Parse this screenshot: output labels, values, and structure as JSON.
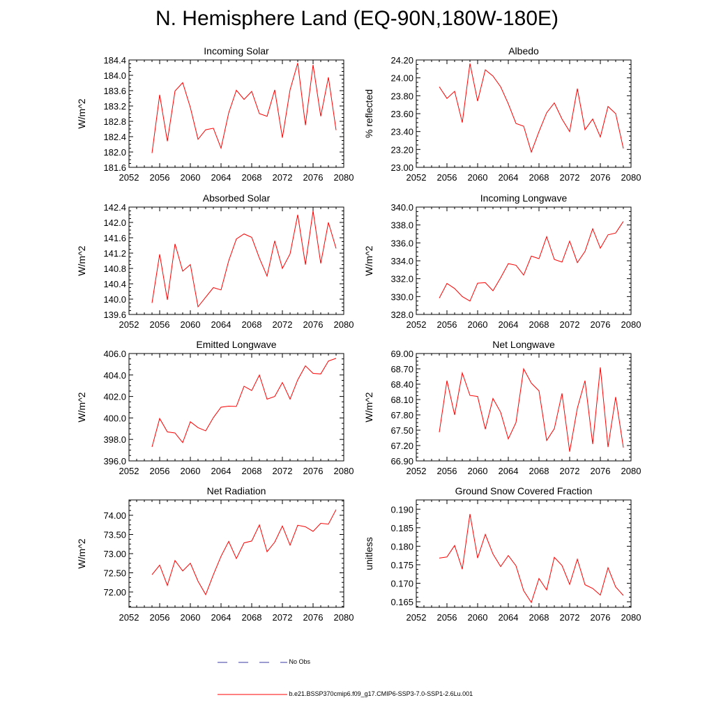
{
  "title": "N. Hemisphere Land (EQ-90N,180W-180E)",
  "colors": {
    "series": "#ff0000",
    "obs": "#3a3aa0",
    "axis": "#000000"
  },
  "legend": [
    {
      "label": "No Obs",
      "color": "#3a3aa0",
      "style": "dashed"
    },
    {
      "label": "b.e21.BSSP370cmip6.f09_g17.CMIP6-SSP3-7.0-SSP1-2.6Lu.001",
      "color": "#ff0000",
      "style": "solid"
    }
  ],
  "chart_data": [
    {
      "type": "line",
      "title": "Incoming Solar",
      "xlabel": "",
      "ylabel": "W/m^2",
      "xlim": [
        2052,
        2080
      ],
      "ylim": [
        181.6,
        184.4
      ],
      "xticks": [
        "2052",
        "2056",
        "2060",
        "2064",
        "2068",
        "2072",
        "2076",
        "2080"
      ],
      "yticks": [
        "181.6",
        "182.0",
        "182.4",
        "182.8",
        "183.2",
        "183.6",
        "184.0",
        "184.4"
      ],
      "x": [
        2055,
        2056,
        2057,
        2058,
        2059,
        2060,
        2061,
        2062,
        2063,
        2064,
        2065,
        2066,
        2067,
        2068,
        2069,
        2070,
        2071,
        2072,
        2073,
        2074,
        2075,
        2076,
        2077,
        2078,
        2079
      ],
      "series": [
        {
          "values": [
            181.97,
            183.49,
            182.28,
            183.59,
            183.81,
            183.16,
            182.33,
            182.58,
            182.62,
            182.1,
            183.02,
            183.61,
            183.37,
            183.58,
            183.0,
            182.93,
            183.62,
            182.37,
            183.62,
            184.32,
            182.7,
            184.27,
            182.93,
            183.95,
            182.57
          ]
        }
      ]
    },
    {
      "type": "line",
      "title": "Albedo",
      "xlabel": "",
      "ylabel": "% reflected",
      "xlim": [
        2052,
        2080
      ],
      "ylim": [
        23.0,
        24.2
      ],
      "xticks": [
        "2052",
        "2056",
        "2060",
        "2064",
        "2068",
        "2072",
        "2076",
        "2080"
      ],
      "yticks": [
        "23.00",
        "23.20",
        "23.40",
        "23.60",
        "23.80",
        "24.00",
        "24.20"
      ],
      "x": [
        2055,
        2056,
        2057,
        2058,
        2059,
        2060,
        2061,
        2062,
        2063,
        2064,
        2065,
        2066,
        2067,
        2068,
        2069,
        2070,
        2071,
        2072,
        2073,
        2074,
        2075,
        2076,
        2077,
        2078,
        2079
      ],
      "series": [
        {
          "values": [
            23.9,
            23.77,
            23.85,
            23.5,
            24.16,
            23.74,
            24.09,
            24.02,
            23.9,
            23.71,
            23.49,
            23.46,
            23.17,
            23.4,
            23.61,
            23.72,
            23.54,
            23.4,
            23.88,
            23.42,
            23.54,
            23.34,
            23.68,
            23.6,
            23.21
          ]
        }
      ]
    },
    {
      "type": "line",
      "title": "Absorbed Solar",
      "xlabel": "",
      "ylabel": "W/m^2",
      "xlim": [
        2052,
        2080
      ],
      "ylim": [
        139.6,
        142.4
      ],
      "xticks": [
        "2052",
        "2056",
        "2060",
        "2064",
        "2068",
        "2072",
        "2076",
        "2080"
      ],
      "yticks": [
        "139.6",
        "140.0",
        "140.4",
        "140.8",
        "141.2",
        "141.6",
        "142.0",
        "142.4"
      ],
      "x": [
        2055,
        2056,
        2057,
        2058,
        2059,
        2060,
        2061,
        2062,
        2063,
        2064,
        2065,
        2066,
        2067,
        2068,
        2069,
        2070,
        2071,
        2072,
        2073,
        2074,
        2075,
        2076,
        2077,
        2078,
        2079
      ],
      "series": [
        {
          "values": [
            139.9,
            141.17,
            139.98,
            141.44,
            140.73,
            140.9,
            139.8,
            140.05,
            140.3,
            140.24,
            141.0,
            141.57,
            141.7,
            141.61,
            141.07,
            140.6,
            141.52,
            140.8,
            141.18,
            142.2,
            140.9,
            142.3,
            140.93,
            142.0,
            141.32
          ]
        }
      ]
    },
    {
      "type": "line",
      "title": "Incoming Longwave",
      "xlabel": "",
      "ylabel": "W/m^2",
      "xlim": [
        2052,
        2080
      ],
      "ylim": [
        328.0,
        340.0
      ],
      "xticks": [
        "2052",
        "2056",
        "2060",
        "2064",
        "2068",
        "2072",
        "2076",
        "2080"
      ],
      "yticks": [
        "328.0",
        "330.0",
        "332.0",
        "334.0",
        "336.0",
        "338.0",
        "340.0"
      ],
      "x": [
        2055,
        2056,
        2057,
        2058,
        2059,
        2060,
        2061,
        2062,
        2063,
        2064,
        2065,
        2066,
        2067,
        2068,
        2069,
        2070,
        2071,
        2072,
        2073,
        2074,
        2075,
        2076,
        2077,
        2078,
        2079
      ],
      "series": [
        {
          "values": [
            329.83,
            331.47,
            330.9,
            330.0,
            329.5,
            331.5,
            331.55,
            330.65,
            332.1,
            333.68,
            333.5,
            332.4,
            334.52,
            334.23,
            336.7,
            334.15,
            333.85,
            336.2,
            333.8,
            335.05,
            337.58,
            335.4,
            336.9,
            337.1,
            338.4
          ]
        }
      ]
    },
    {
      "type": "line",
      "title": "Emitted Longwave",
      "xlabel": "",
      "ylabel": "W/m^2",
      "xlim": [
        2052,
        2080
      ],
      "ylim": [
        396.0,
        406.0
      ],
      "xticks": [
        "2052",
        "2056",
        "2060",
        "2064",
        "2068",
        "2072",
        "2076",
        "2080"
      ],
      "yticks": [
        "396.0",
        "398.0",
        "400.0",
        "402.0",
        "404.0",
        "406.0"
      ],
      "x": [
        2055,
        2056,
        2057,
        2058,
        2059,
        2060,
        2061,
        2062,
        2063,
        2064,
        2065,
        2066,
        2067,
        2068,
        2069,
        2070,
        2071,
        2072,
        2073,
        2074,
        2075,
        2076,
        2077,
        2078,
        2079
      ],
      "series": [
        {
          "values": [
            397.3,
            399.95,
            398.7,
            398.6,
            397.7,
            399.65,
            399.1,
            398.8,
            400.03,
            401.0,
            401.1,
            401.07,
            402.95,
            402.55,
            404.0,
            401.75,
            402.0,
            403.3,
            401.75,
            403.55,
            404.85,
            404.15,
            404.1,
            405.3,
            405.55
          ]
        }
      ]
    },
    {
      "type": "line",
      "title": "Net Longwave",
      "xlabel": "",
      "ylabel": "W/m^2",
      "xlim": [
        2052,
        2080
      ],
      "ylim": [
        66.9,
        69.0
      ],
      "xticks": [
        "2052",
        "2056",
        "2060",
        "2064",
        "2068",
        "2072",
        "2076",
        "2080"
      ],
      "yticks": [
        "66.90",
        "67.20",
        "67.50",
        "67.80",
        "68.10",
        "68.40",
        "68.70",
        "69.00"
      ],
      "x": [
        2055,
        2056,
        2057,
        2058,
        2059,
        2060,
        2061,
        2062,
        2063,
        2064,
        2065,
        2066,
        2067,
        2068,
        2069,
        2070,
        2071,
        2072,
        2073,
        2074,
        2075,
        2076,
        2077,
        2078,
        2079
      ],
      "series": [
        {
          "values": [
            67.46,
            68.47,
            67.8,
            68.62,
            68.18,
            68.16,
            67.52,
            68.12,
            67.85,
            67.33,
            67.65,
            68.7,
            68.42,
            68.27,
            67.3,
            67.53,
            68.22,
            67.08,
            67.93,
            68.47,
            67.23,
            68.73,
            67.17,
            68.15,
            67.16
          ]
        }
      ]
    },
    {
      "type": "line",
      "title": "Net Radiation",
      "xlabel": "",
      "ylabel": "W/m^2",
      "xlim": [
        2052,
        2080
      ],
      "ylim": [
        71.6,
        74.4
      ],
      "xticks": [
        "2052",
        "2056",
        "2060",
        "2064",
        "2068",
        "2072",
        "2076",
        "2080"
      ],
      "yticks": [
        "72.00",
        "72.50",
        "73.00",
        "73.50",
        "74.00"
      ],
      "x": [
        2055,
        2056,
        2057,
        2058,
        2059,
        2060,
        2061,
        2062,
        2063,
        2064,
        2065,
        2066,
        2067,
        2068,
        2069,
        2070,
        2071,
        2072,
        2073,
        2074,
        2075,
        2076,
        2077,
        2078,
        2079
      ],
      "series": [
        {
          "values": [
            72.45,
            72.7,
            72.17,
            72.82,
            72.55,
            72.75,
            72.28,
            71.93,
            72.45,
            72.93,
            73.32,
            72.87,
            73.28,
            73.33,
            73.75,
            73.05,
            73.3,
            73.72,
            73.22,
            73.74,
            73.7,
            73.58,
            73.79,
            73.77,
            74.15
          ]
        }
      ]
    },
    {
      "type": "line",
      "title": "Ground Snow Covered Fraction",
      "xlabel": "",
      "ylabel": "unitless",
      "xlim": [
        2052,
        2080
      ],
      "ylim": [
        0.1635,
        0.1925
      ],
      "xticks": [
        "2052",
        "2056",
        "2060",
        "2064",
        "2068",
        "2072",
        "2076",
        "2080"
      ],
      "yticks": [
        "0.165",
        "0.170",
        "0.175",
        "0.180",
        "0.185",
        "0.190"
      ],
      "x": [
        2055,
        2056,
        2057,
        2058,
        2059,
        2060,
        2061,
        2062,
        2063,
        2064,
        2065,
        2066,
        2067,
        2068,
        2069,
        2070,
        2071,
        2072,
        2073,
        2074,
        2075,
        2076,
        2077,
        2078,
        2079
      ],
      "series": [
        {
          "values": [
            0.1768,
            0.1771,
            0.1802,
            0.1738,
            0.1887,
            0.1768,
            0.1832,
            0.1779,
            0.1745,
            0.1775,
            0.1747,
            0.168,
            0.1648,
            0.1713,
            0.1682,
            0.177,
            0.1748,
            0.1697,
            0.1765,
            0.1696,
            0.1686,
            0.1668,
            0.1742,
            0.169,
            0.1667
          ]
        }
      ]
    }
  ]
}
